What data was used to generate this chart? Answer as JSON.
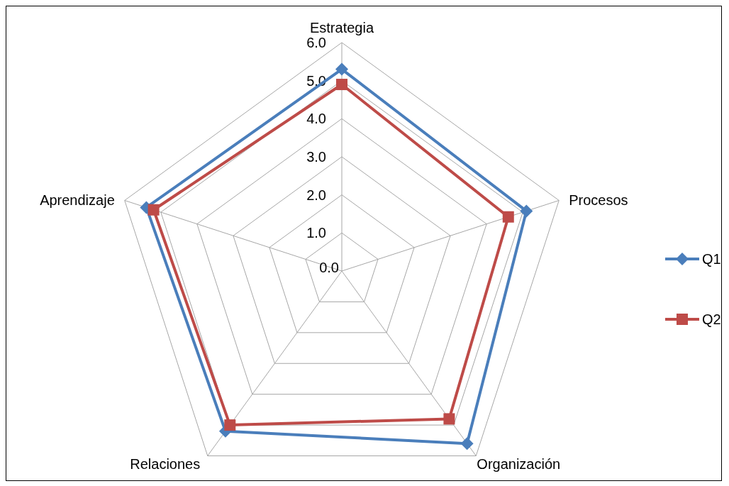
{
  "chart_data": {
    "type": "radar",
    "categories": [
      "Estrategia",
      "Procesos",
      "Organización",
      "Relaciones",
      "Aprendizaje"
    ],
    "series": [
      {
        "name": "Q1",
        "color": "#4a7ebb",
        "values": [
          5.3,
          5.1,
          5.6,
          5.2,
          5.4
        ],
        "marker": "diamond"
      },
      {
        "name": "Q2",
        "color": "#be4b48",
        "values": [
          4.9,
          4.6,
          4.8,
          5.0,
          5.2
        ],
        "marker": "square"
      }
    ],
    "ylim": [
      0,
      6
    ],
    "yticks": [
      {
        "value": 0,
        "label": "0.0"
      },
      {
        "value": 1,
        "label": "1.0"
      },
      {
        "value": 2,
        "label": "2.0"
      },
      {
        "value": 3,
        "label": "3.0"
      },
      {
        "value": 4,
        "label": "4.0"
      },
      {
        "value": 5,
        "label": "5.0"
      },
      {
        "value": 6,
        "label": "6.0"
      }
    ],
    "grid": true,
    "legend": "right"
  }
}
